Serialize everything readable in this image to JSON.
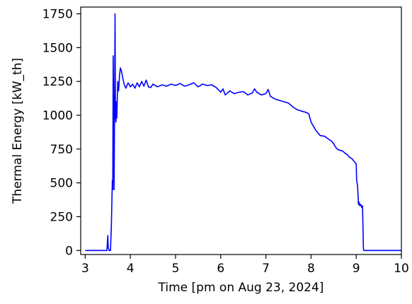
{
  "chart_data": {
    "type": "line",
    "xlabel": "Time [pm on Aug 23, 2024]",
    "ylabel": "Thermal Energy [kW_th]",
    "xlim": [
      2.9,
      10.0
    ],
    "ylim": [
      -30,
      1800
    ],
    "xticks": [
      3,
      4,
      5,
      6,
      7,
      8,
      9,
      10
    ],
    "yticks": [
      0,
      250,
      500,
      750,
      1000,
      1250,
      1500,
      1750
    ],
    "grid": false,
    "legend": "none",
    "series": [
      {
        "color": "#0000ff",
        "points": [
          [
            3.0,
            0
          ],
          [
            3.48,
            0
          ],
          [
            3.5,
            110
          ],
          [
            3.51,
            20
          ],
          [
            3.53,
            0
          ],
          [
            3.56,
            0
          ],
          [
            3.58,
            200
          ],
          [
            3.6,
            520
          ],
          [
            3.61,
            450
          ],
          [
            3.62,
            1440
          ],
          [
            3.63,
            900
          ],
          [
            3.64,
            450
          ],
          [
            3.65,
            1100
          ],
          [
            3.66,
            1750
          ],
          [
            3.67,
            1000
          ],
          [
            3.68,
            950
          ],
          [
            3.69,
            1100
          ],
          [
            3.7,
            980
          ],
          [
            3.72,
            1250
          ],
          [
            3.74,
            1180
          ],
          [
            3.76,
            1300
          ],
          [
            3.78,
            1350
          ],
          [
            3.8,
            1330
          ],
          [
            3.83,
            1280
          ],
          [
            3.86,
            1230
          ],
          [
            3.9,
            1200
          ],
          [
            3.95,
            1240
          ],
          [
            4.0,
            1210
          ],
          [
            4.05,
            1230
          ],
          [
            4.1,
            1200
          ],
          [
            4.15,
            1240
          ],
          [
            4.2,
            1210
          ],
          [
            4.25,
            1250
          ],
          [
            4.3,
            1215
          ],
          [
            4.35,
            1260
          ],
          [
            4.4,
            1210
          ],
          [
            4.45,
            1205
          ],
          [
            4.5,
            1230
          ],
          [
            4.6,
            1210
          ],
          [
            4.7,
            1225
          ],
          [
            4.8,
            1215
          ],
          [
            4.9,
            1230
          ],
          [
            5.0,
            1220
          ],
          [
            5.1,
            1235
          ],
          [
            5.2,
            1215
          ],
          [
            5.3,
            1225
          ],
          [
            5.4,
            1240
          ],
          [
            5.5,
            1210
          ],
          [
            5.6,
            1230
          ],
          [
            5.7,
            1220
          ],
          [
            5.8,
            1225
          ],
          [
            5.9,
            1205
          ],
          [
            6.0,
            1170
          ],
          [
            6.05,
            1195
          ],
          [
            6.1,
            1150
          ],
          [
            6.2,
            1180
          ],
          [
            6.3,
            1160
          ],
          [
            6.4,
            1170
          ],
          [
            6.5,
            1175
          ],
          [
            6.6,
            1150
          ],
          [
            6.7,
            1165
          ],
          [
            6.75,
            1195
          ],
          [
            6.8,
            1170
          ],
          [
            6.9,
            1150
          ],
          [
            7.0,
            1160
          ],
          [
            7.05,
            1190
          ],
          [
            7.1,
            1140
          ],
          [
            7.2,
            1120
          ],
          [
            7.3,
            1110
          ],
          [
            7.4,
            1100
          ],
          [
            7.5,
            1090
          ],
          [
            7.6,
            1060
          ],
          [
            7.7,
            1040
          ],
          [
            7.8,
            1030
          ],
          [
            7.9,
            1020
          ],
          [
            7.95,
            1010
          ],
          [
            8.0,
            950
          ],
          [
            8.05,
            920
          ],
          [
            8.1,
            890
          ],
          [
            8.15,
            870
          ],
          [
            8.2,
            850
          ],
          [
            8.3,
            845
          ],
          [
            8.4,
            820
          ],
          [
            8.45,
            810
          ],
          [
            8.5,
            790
          ],
          [
            8.55,
            760
          ],
          [
            8.6,
            745
          ],
          [
            8.7,
            735
          ],
          [
            8.75,
            720
          ],
          [
            8.8,
            710
          ],
          [
            8.85,
            690
          ],
          [
            8.9,
            680
          ],
          [
            8.95,
            660
          ],
          [
            9.0,
            640
          ],
          [
            9.01,
            520
          ],
          [
            9.03,
            480
          ],
          [
            9.05,
            340
          ],
          [
            9.06,
            360
          ],
          [
            9.08,
            330
          ],
          [
            9.1,
            340
          ],
          [
            9.12,
            320
          ],
          [
            9.14,
            330
          ],
          [
            9.16,
            10
          ],
          [
            9.17,
            0
          ],
          [
            9.5,
            0
          ],
          [
            10.0,
            0
          ]
        ]
      }
    ]
  }
}
